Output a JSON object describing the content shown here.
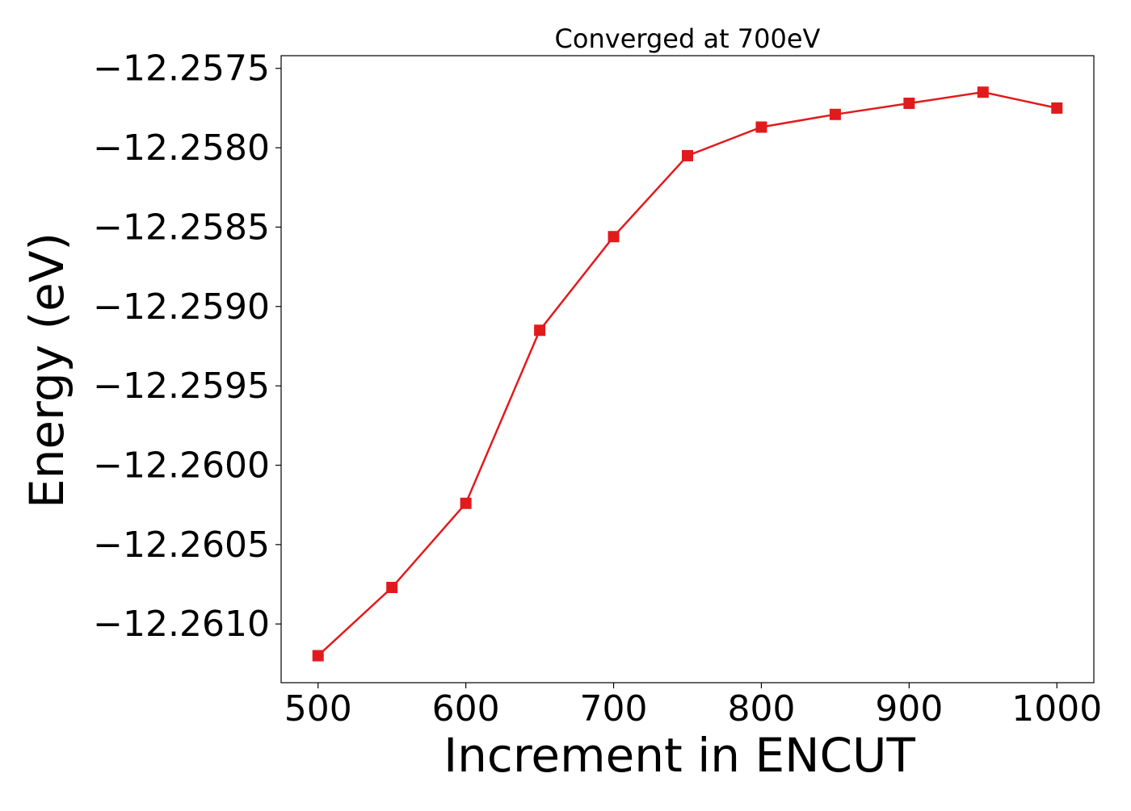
{
  "chart_data": {
    "type": "line",
    "title": "Converged at 700eV",
    "xlabel": "Increment in ENCUT",
    "ylabel": "Energy (eV)",
    "xlim": [
      475,
      1025
    ],
    "ylim": [
      -12.26137,
      -12.25742
    ],
    "xticks": [
      500,
      600,
      700,
      800,
      900,
      1000
    ],
    "xtick_labels": [
      "500",
      "600",
      "700",
      "800",
      "900",
      "1000"
    ],
    "yticks": [
      -12.261,
      -12.2605,
      -12.26,
      -12.2595,
      -12.259,
      -12.2585,
      -12.258,
      -12.2575
    ],
    "ytick_labels": [
      "−12.2610",
      "−12.2605",
      "−12.2600",
      "−12.2595",
      "−12.2590",
      "−12.2585",
      "−12.2580",
      "−12.2575"
    ],
    "grid": false,
    "series": [
      {
        "color": "#e31a1c",
        "marker": "square",
        "x": [
          500,
          550,
          600,
          650,
          700,
          750,
          800,
          850,
          900,
          950,
          1000
        ],
        "y": [
          -12.2612,
          -12.26077,
          -12.26024,
          -12.25915,
          -12.25856,
          -12.25805,
          -12.25787,
          -12.25779,
          -12.25772,
          -12.25765,
          -12.25775
        ]
      }
    ]
  }
}
